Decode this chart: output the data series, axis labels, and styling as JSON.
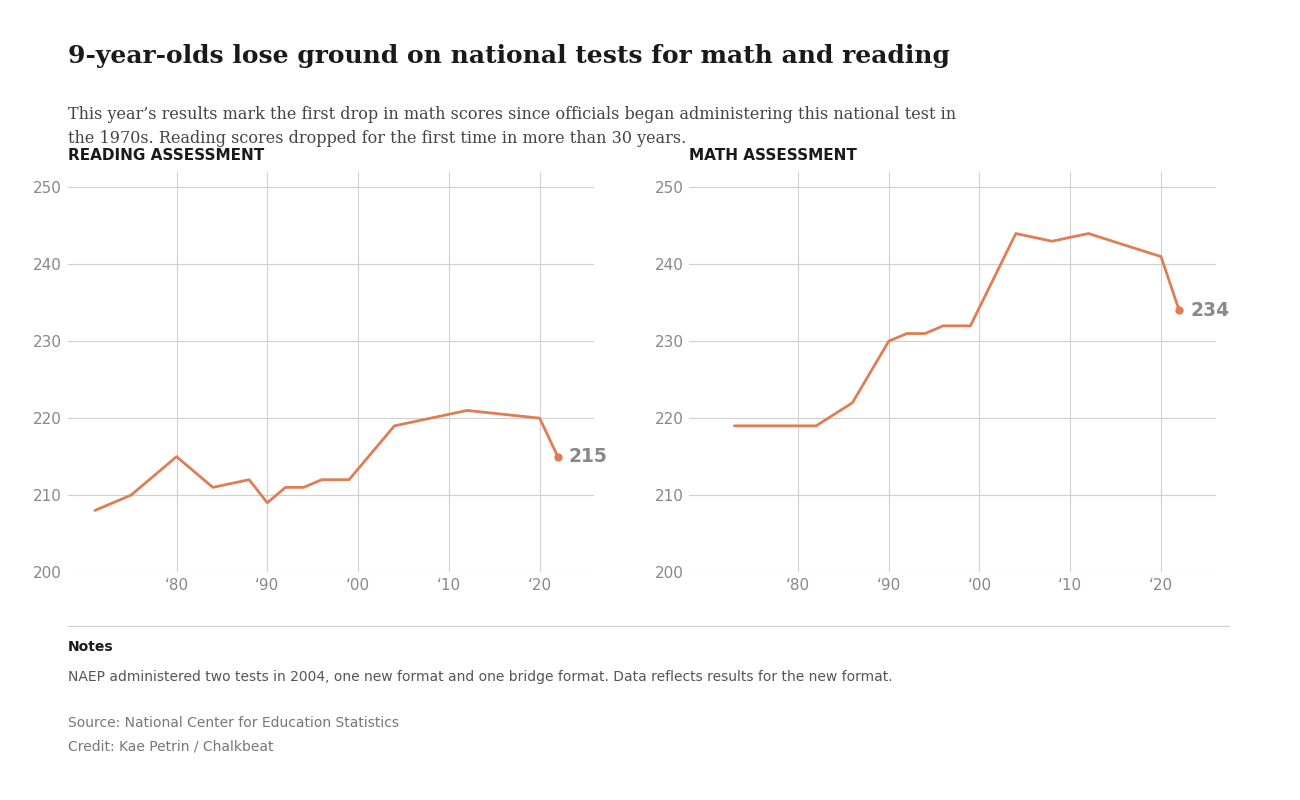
{
  "title": "9-year-olds lose ground on national tests for math and reading",
  "subtitle": "This year’s results mark the first drop in math scores since officials began administering this national test in\nthe 1970s. Reading scores dropped for the first time in more than 30 years.",
  "reading_label": "READING ASSESSMENT",
  "math_label": "MATH ASSESSMENT",
  "reading_years": [
    1971,
    1975,
    1980,
    1984,
    1988,
    1990,
    1992,
    1994,
    1996,
    1999,
    2004,
    2008,
    2012,
    2020,
    2022
  ],
  "reading_scores": [
    208,
    210,
    215,
    211,
    212,
    209,
    211,
    211,
    212,
    212,
    219,
    220,
    221,
    220,
    215
  ],
  "math_years": [
    1973,
    1978,
    1982,
    1986,
    1990,
    1992,
    1994,
    1996,
    1999,
    2004,
    2008,
    2012,
    2020,
    2022
  ],
  "math_scores": [
    219,
    219,
    219,
    222,
    230,
    231,
    231,
    232,
    232,
    244,
    243,
    244,
    241,
    234
  ],
  "line_color": "#e07d55",
  "reading_end_label": "215",
  "math_end_label": "234",
  "ylim": [
    200,
    252
  ],
  "yticks": [
    200,
    210,
    220,
    230,
    240,
    250
  ],
  "x_tick_labels": [
    "‘80",
    "‘90",
    "‘00",
    "‘10",
    "‘20"
  ],
  "x_tick_positions": [
    1980,
    1990,
    2000,
    2010,
    2020
  ],
  "notes_bold": "Notes",
  "notes_text": "NAEP administered two tests in 2004, one new format and one bridge format. Data reflects results for the new format.",
  "source_line1": "Source: National Center for Education Statistics",
  "source_line2": "Credit: Kae Petrin / Chalkbeat",
  "background_color": "#ffffff",
  "grid_color": "#d0d0d0",
  "text_dark": "#1a1a1a",
  "text_mid": "#444444",
  "text_light": "#888888",
  "end_label_color": "#888888"
}
